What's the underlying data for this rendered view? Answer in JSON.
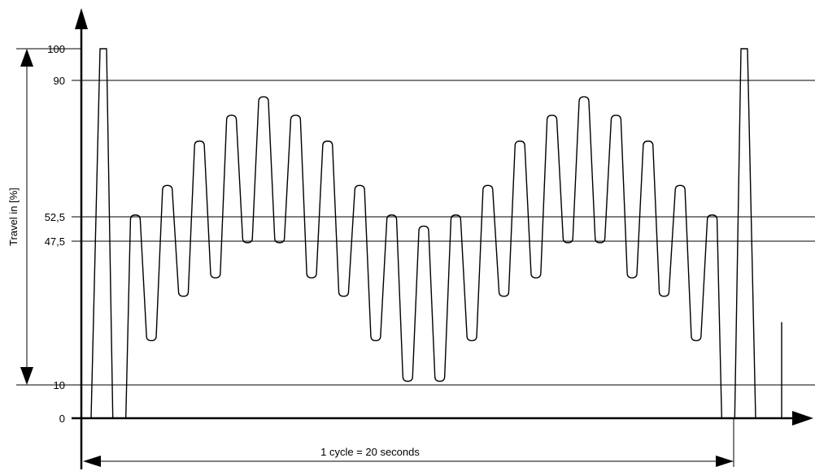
{
  "diagram": {
    "y_axis_label": "Travel in [%]",
    "y_ticks": [
      "100",
      "90",
      "52,5",
      "47,5",
      "10",
      "0"
    ],
    "x_dimension_label": "1 cycle = 20 seconds"
  },
  "chart_data": {
    "type": "line",
    "ylabel": "Travel in [%]",
    "ylim": [
      0,
      100
    ],
    "reference_lines": [
      90,
      52.5,
      47.5,
      10
    ],
    "grid": false,
    "peaks": [
      100,
      55,
      63,
      75,
      82,
      87,
      82,
      75,
      63,
      55,
      52,
      55,
      63,
      75,
      82,
      87,
      82,
      75,
      63,
      55,
      100
    ],
    "troughs": [
      0,
      21,
      33,
      38,
      47.5,
      47.5,
      38,
      33,
      21,
      10,
      10,
      21,
      33,
      38,
      47.5,
      47.5,
      38,
      33,
      21,
      0
    ],
    "cycle_label": "1 cycle = 20 seconds"
  },
  "colors": {
    "line": "#000000",
    "background": "#ffffff"
  }
}
